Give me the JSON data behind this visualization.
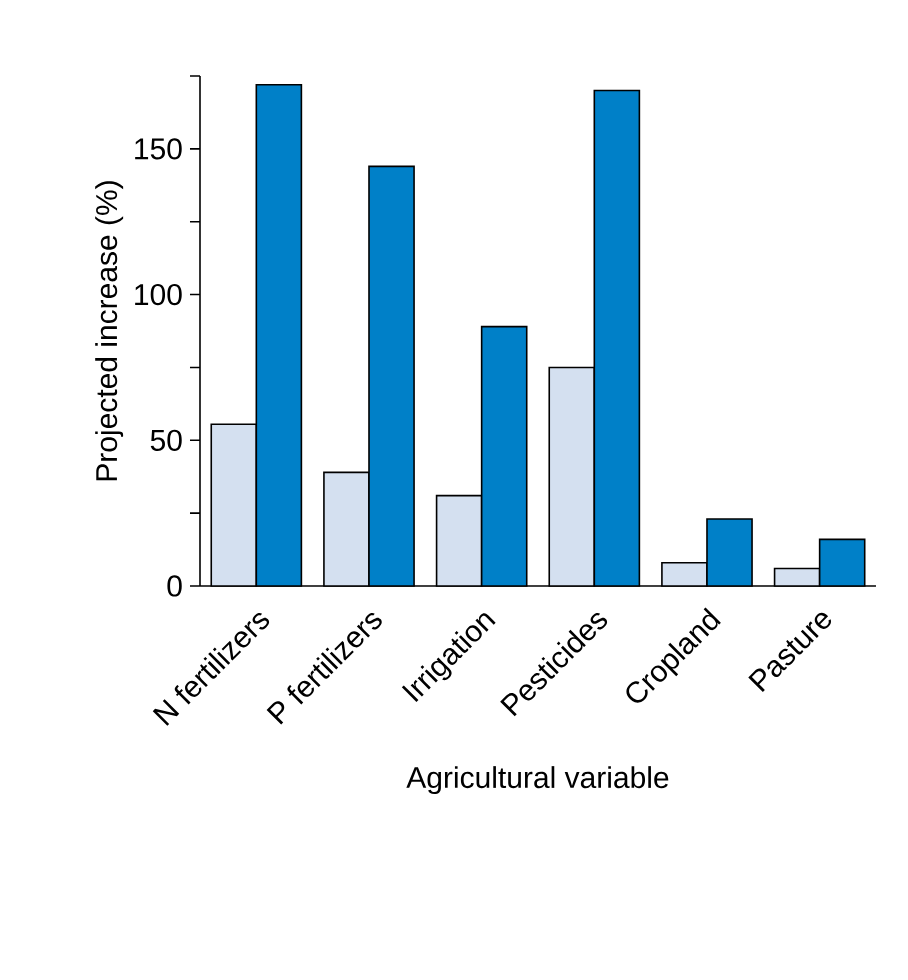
{
  "chart_data": {
    "type": "bar",
    "xlabel": "Agricultural variable",
    "ylabel": "Projected increase (%)",
    "categories": [
      "N fertilizers",
      "P fertilizers",
      "Irrigation",
      "Pesticides",
      "Cropland",
      "Pasture"
    ],
    "series": [
      {
        "color": "#d4e0f0",
        "values": [
          55.5,
          39,
          31,
          75,
          8,
          6
        ]
      },
      {
        "color": "#0080c8",
        "values": [
          172,
          144,
          89,
          170,
          23,
          16
        ]
      }
    ],
    "ylim": [
      0,
      175
    ],
    "yticks": [
      0,
      {
        "value": 25,
        "label": null
      },
      50,
      {
        "value": 75,
        "label": null
      },
      100,
      {
        "value": 125,
        "label": null
      },
      150,
      {
        "value": 175,
        "label": null
      }
    ],
    "grid": false
  }
}
